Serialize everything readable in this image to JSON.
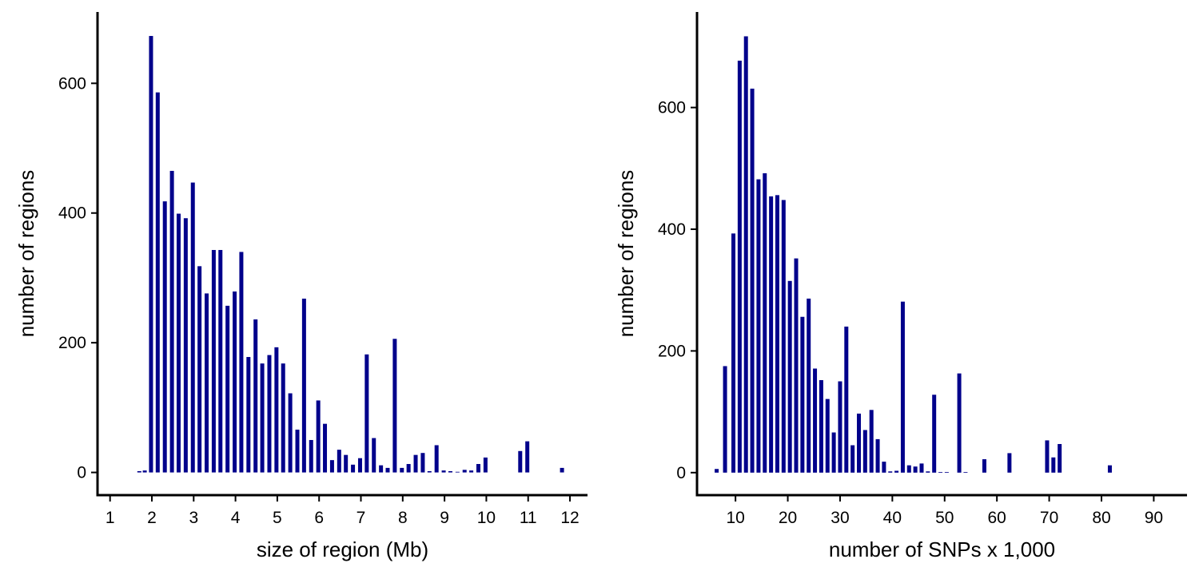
{
  "figure": {
    "bar_color": "#00008b",
    "axis_color": "#000000",
    "background": "#ffffff"
  },
  "chart_data": [
    {
      "type": "bar",
      "title": "",
      "xlabel": "size of region (Mb)",
      "ylabel": "number of regions",
      "xlim": [
        0.7,
        12.42
      ],
      "ylim": [
        -35,
        710
      ],
      "xticks": [
        1,
        2,
        3,
        4,
        5,
        6,
        7,
        8,
        9,
        10,
        11,
        12
      ],
      "yticks": [
        0,
        200,
        400,
        600
      ],
      "grid": false,
      "x": [
        1.7,
        1.83,
        1.98,
        2.14,
        2.31,
        2.48,
        2.64,
        2.81,
        2.98,
        3.14,
        3.31,
        3.48,
        3.64,
        3.81,
        3.98,
        4.14,
        4.31,
        4.48,
        4.64,
        4.81,
        4.98,
        5.14,
        5.31,
        5.48,
        5.64,
        5.81,
        5.98,
        6.14,
        6.31,
        6.48,
        6.64,
        6.81,
        6.98,
        7.14,
        7.31,
        7.48,
        7.64,
        7.81,
        7.98,
        8.14,
        8.31,
        8.48,
        8.64,
        8.81,
        8.98,
        9.14,
        9.31,
        9.48,
        9.64,
        9.81,
        9.98,
        10.81,
        10.98,
        11.81
      ],
      "values": [
        2,
        3,
        673,
        586,
        418,
        465,
        399,
        392,
        447,
        318,
        276,
        343,
        343,
        257,
        279,
        340,
        178,
        236,
        168,
        181,
        193,
        168,
        122,
        66,
        268,
        50,
        111,
        75,
        19,
        35,
        27,
        12,
        22,
        182,
        53,
        11,
        7,
        206,
        7,
        13,
        27,
        30,
        2,
        42,
        3,
        2,
        1,
        4,
        3,
        13,
        23,
        33,
        48,
        7
      ]
    },
    {
      "type": "bar",
      "title": "",
      "xlabel": "number of SNPs x 1,000",
      "ylabel": "number of regions",
      "xlim": [
        2.64,
        96.36
      ],
      "ylim": [
        -37,
        757
      ],
      "xticks": [
        10,
        20,
        30,
        40,
        50,
        60,
        70,
        80,
        90
      ],
      "yticks": [
        0,
        200,
        400,
        600
      ],
      "grid": false,
      "x": [
        6.4,
        8.0,
        9.6,
        10.8,
        12.0,
        13.2,
        14.4,
        15.6,
        16.8,
        18.0,
        19.2,
        20.4,
        21.6,
        22.8,
        24.0,
        25.2,
        26.4,
        27.6,
        28.8,
        30.0,
        31.2,
        32.4,
        33.6,
        34.8,
        36.0,
        37.2,
        38.4,
        39.6,
        40.8,
        42.0,
        43.2,
        44.4,
        45.6,
        46.8,
        48.0,
        49.2,
        50.4,
        52.8,
        54.0,
        57.6,
        62.4,
        69.6,
        70.8,
        72.0,
        81.6
      ],
      "values": [
        6,
        175,
        393,
        677,
        717,
        631,
        482,
        492,
        454,
        456,
        448,
        315,
        352,
        256,
        286,
        171,
        152,
        121,
        66,
        150,
        240,
        45,
        97,
        70,
        103,
        55,
        18,
        2,
        3,
        281,
        12,
        10,
        15,
        2,
        128,
        1,
        1,
        163,
        1,
        22,
        32,
        53,
        25,
        47,
        12
      ]
    }
  ]
}
